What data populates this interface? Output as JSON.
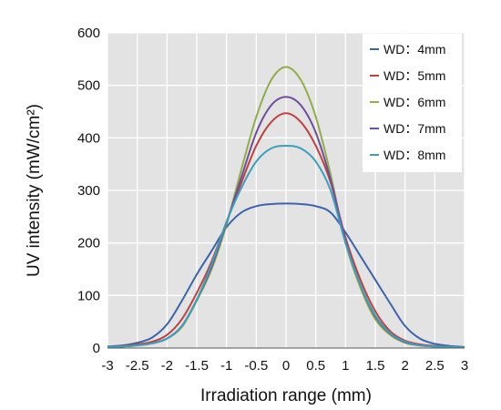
{
  "chart_data": {
    "type": "line",
    "xlabel": "Irradiation range (mm)",
    "ylabel": "UV intensity (mW/cm²)",
    "xlim": [
      -3,
      3
    ],
    "ylim": [
      0,
      600
    ],
    "x_ticks": [
      -3,
      -2.5,
      -2,
      -1.5,
      -1,
      -0.5,
      0,
      0.5,
      1,
      1.5,
      2,
      2.5,
      3
    ],
    "y_ticks": [
      0,
      100,
      200,
      300,
      400,
      500,
      600
    ],
    "grid": true,
    "legend_position": "top-right",
    "x": [
      -3,
      -2.75,
      -2.5,
      -2.25,
      -2,
      -1.75,
      -1.5,
      -1.25,
      -1,
      -0.75,
      -0.5,
      -0.25,
      0,
      0.25,
      0.5,
      0.75,
      1,
      1.25,
      1.5,
      1.75,
      2,
      2.25,
      2.5,
      2.75,
      3
    ],
    "series": [
      {
        "name": "WD：4mm",
        "color": "#3c64ad",
        "values": [
          3,
          5,
          10,
          20,
          45,
          90,
          140,
          185,
          230,
          258,
          270,
          274,
          275,
          274,
          270,
          258,
          220,
          175,
          130,
          85,
          42,
          18,
          8,
          4,
          2
        ]
      },
      {
        "name": "WD：5mm",
        "color": "#c0413e",
        "values": [
          2,
          4,
          7,
          12,
          25,
          55,
          105,
          165,
          240,
          315,
          385,
          430,
          447,
          430,
          385,
          315,
          210,
          130,
          70,
          32,
          14,
          7,
          4,
          2,
          1
        ]
      },
      {
        "name": "WD：6mm",
        "color": "#8fae47",
        "values": [
          2,
          3,
          5,
          9,
          18,
          40,
          90,
          150,
          235,
          340,
          440,
          510,
          535,
          510,
          440,
          330,
          200,
          115,
          55,
          25,
          10,
          5,
          3,
          2,
          1
        ]
      },
      {
        "name": "WD：7mm",
        "color": "#6e4e9c",
        "values": [
          2,
          3,
          5,
          9,
          18,
          42,
          92,
          155,
          238,
          325,
          410,
          462,
          478,
          462,
          410,
          320,
          205,
          120,
          60,
          27,
          11,
          5,
          3,
          2,
          1
        ]
      },
      {
        "name": "WD：8mm",
        "color": "#3aa0be",
        "values": [
          2,
          3,
          5,
          9,
          18,
          42,
          92,
          160,
          240,
          305,
          355,
          380,
          385,
          380,
          355,
          300,
          200,
          120,
          62,
          28,
          12,
          5,
          3,
          2,
          1
        ]
      }
    ]
  }
}
